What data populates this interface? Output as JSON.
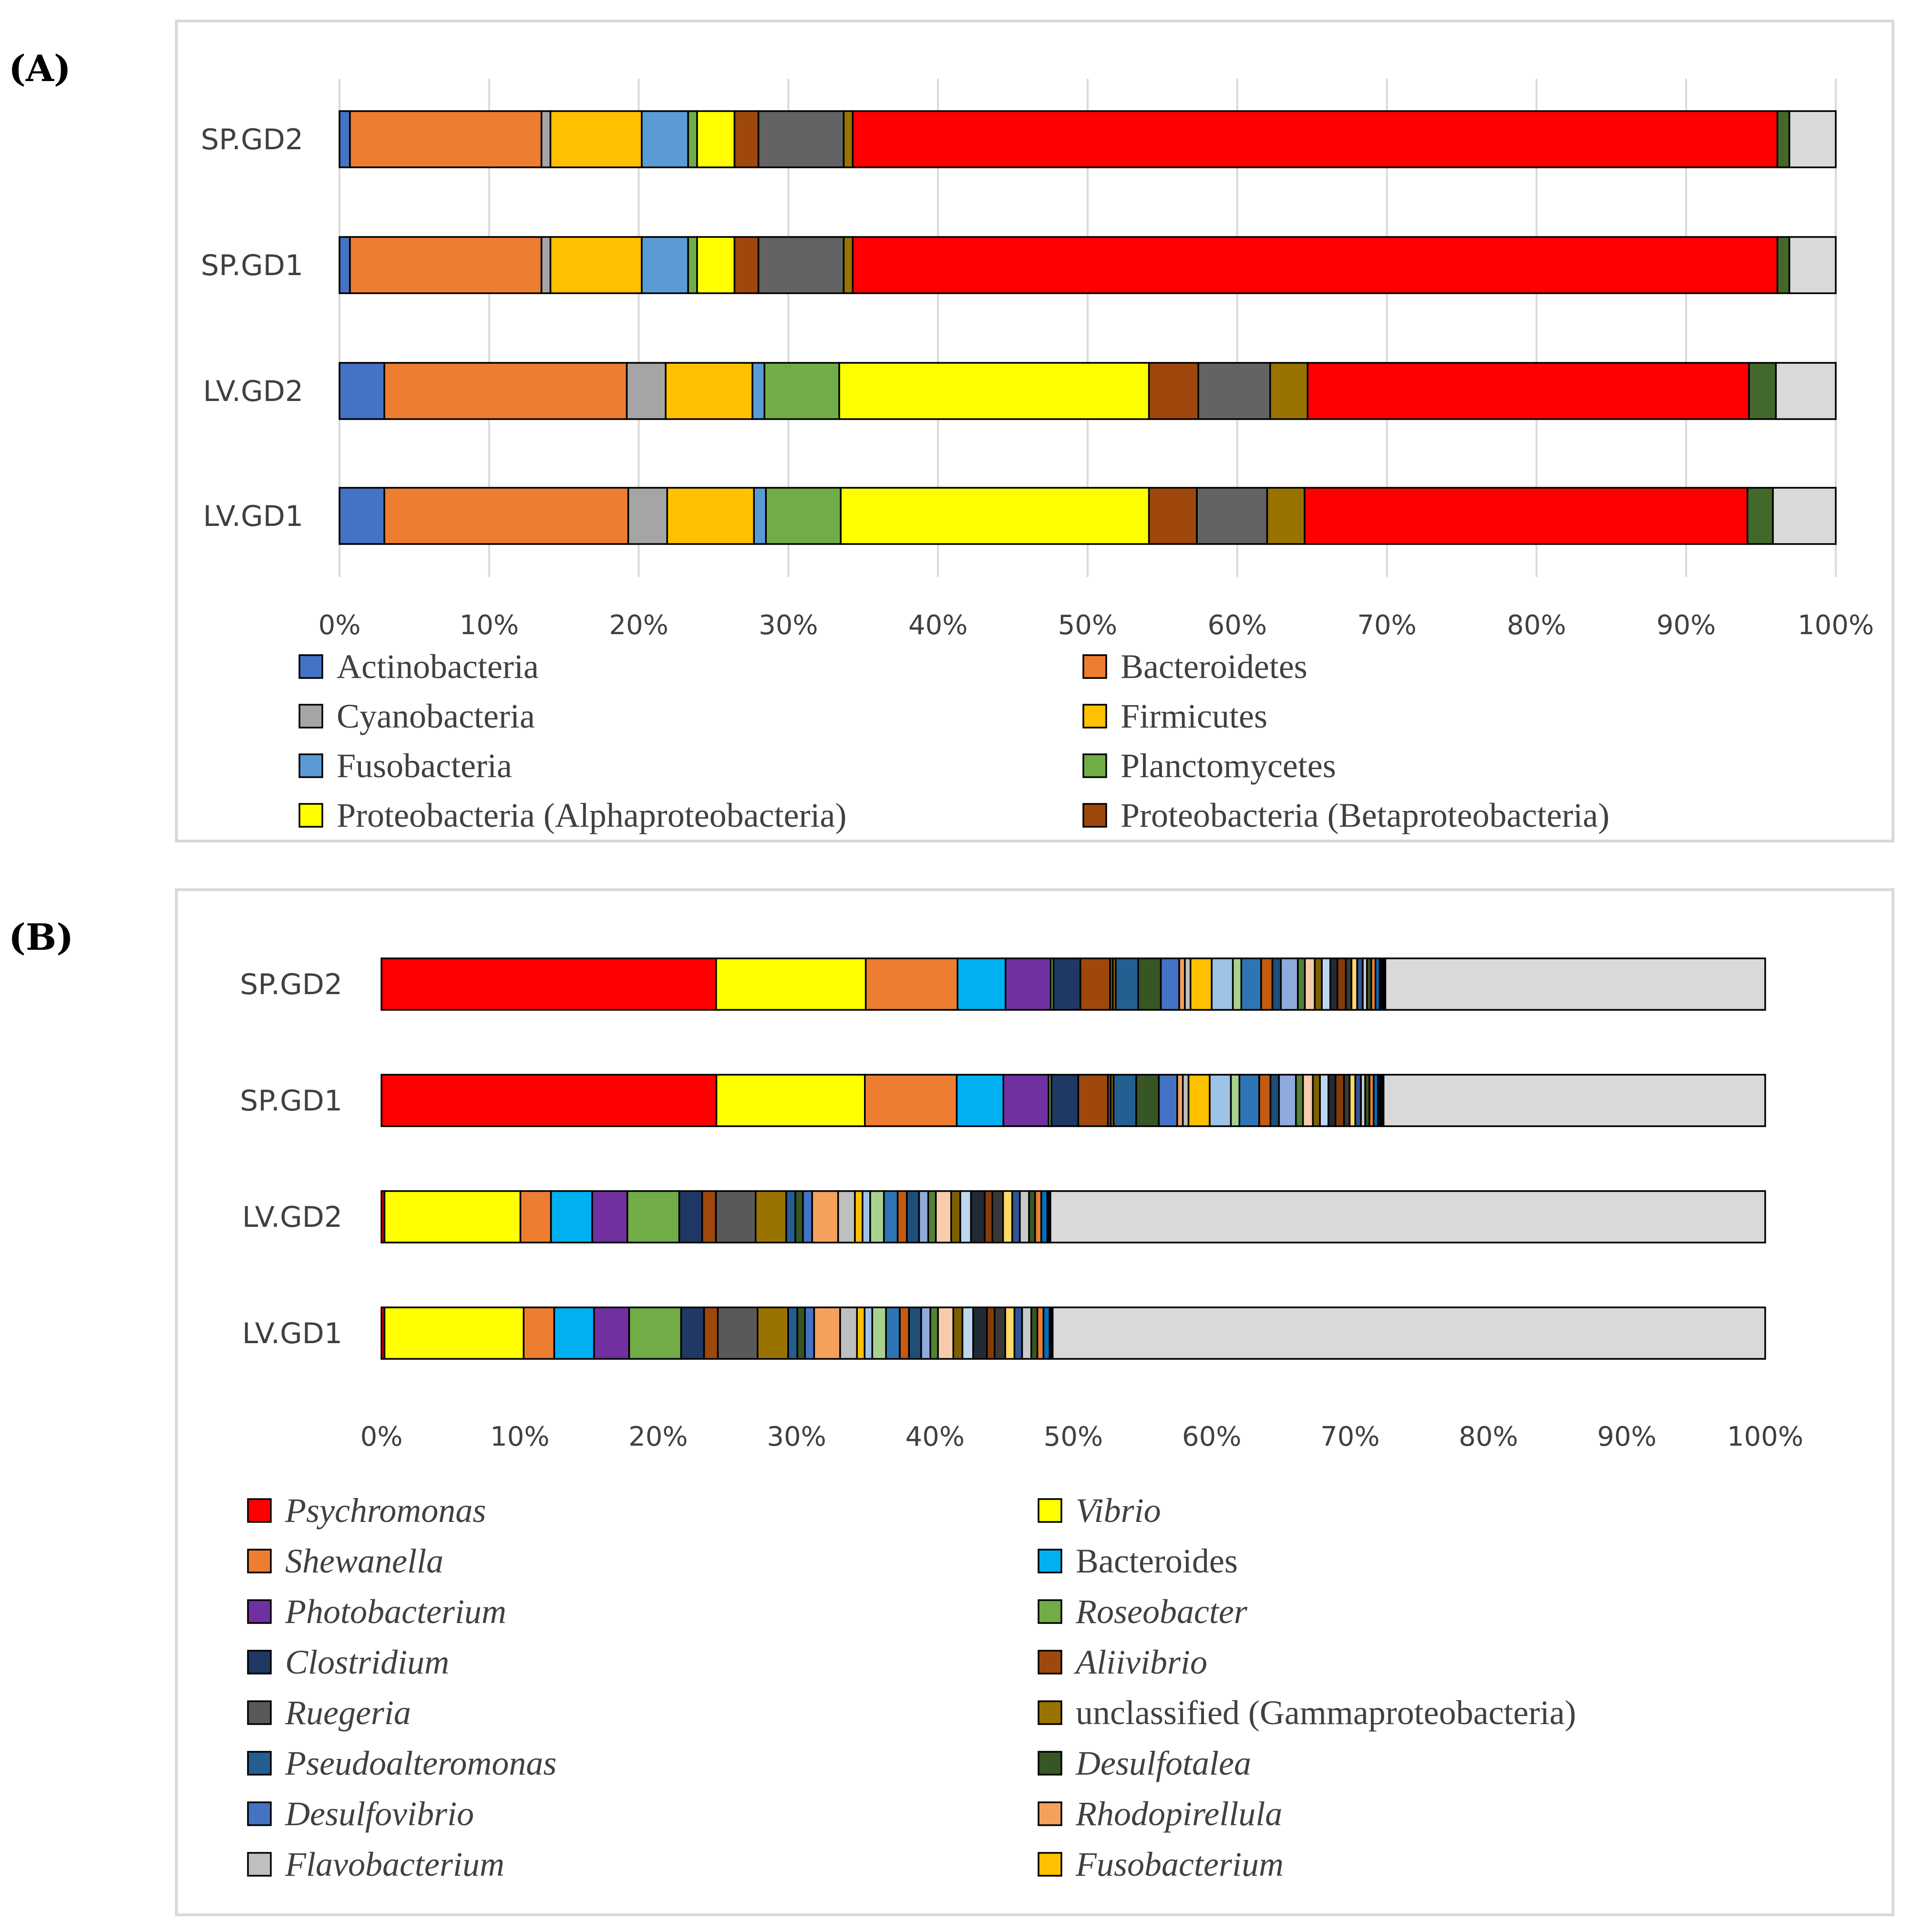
{
  "chart_data": [
    {
      "panel": "(A)",
      "type": "bar",
      "orientation": "horizontal",
      "stacked": "percent",
      "categories": [
        "SP.GD2",
        "SP.GD1",
        "LV.GD2",
        "LV.GD1"
      ],
      "xlim": [
        0,
        100
      ],
      "xticks": [
        "0%",
        "10%",
        "20%",
        "30%",
        "40%",
        "50%",
        "60%",
        "70%",
        "80%",
        "90%",
        "100%"
      ],
      "grid": "vertical",
      "series": [
        {
          "name": "Actinobacteria",
          "color": "#4472C4",
          "legend": true,
          "values": [
            0.7,
            0.7,
            3.0,
            3.0
          ]
        },
        {
          "name": "Bacteroidetes",
          "color": "#ED7D31",
          "legend": true,
          "values": [
            12.8,
            12.8,
            16.2,
            16.3
          ]
        },
        {
          "name": "Cyanobacteria",
          "color": "#A5A5A5",
          "legend": true,
          "values": [
            0.6,
            0.6,
            2.6,
            2.6
          ]
        },
        {
          "name": "Firmicutes",
          "color": "#FFC000",
          "legend": true,
          "values": [
            6.1,
            6.1,
            5.8,
            5.8
          ]
        },
        {
          "name": "Fusobacteria",
          "color": "#5B9BD5",
          "legend": true,
          "values": [
            3.1,
            3.1,
            0.8,
            0.8
          ]
        },
        {
          "name": "Planctomycetes",
          "color": "#70AD47",
          "legend": true,
          "values": [
            0.6,
            0.6,
            5.0,
            5.0
          ]
        },
        {
          "name": "Proteobacteria (Alphaproteobacteria)",
          "color": "#FFFF00",
          "legend": true,
          "values": [
            2.5,
            2.5,
            20.7,
            20.6
          ]
        },
        {
          "name": "Proteobacteria (Betaproteobacteria)",
          "color": "#9E480E",
          "legend": true,
          "values": [
            1.6,
            1.6,
            3.3,
            3.2
          ]
        },
        {
          "name": "",
          "color": "#636363",
          "legend": false,
          "values": [
            5.7,
            5.7,
            4.8,
            4.7
          ]
        },
        {
          "name": "",
          "color": "#997300",
          "legend": false,
          "values": [
            0.6,
            0.6,
            2.5,
            2.5
          ]
        },
        {
          "name": "",
          "color": "#FF0000",
          "legend": false,
          "values": [
            61.8,
            61.8,
            29.5,
            29.6
          ]
        },
        {
          "name": "",
          "color": "#43682B",
          "legend": false,
          "values": [
            0.8,
            0.8,
            1.8,
            1.7
          ]
        },
        {
          "name": "",
          "color": "#D9D9D9",
          "legend": false,
          "values": [
            3.1,
            3.1,
            4.0,
            4.2
          ]
        }
      ]
    },
    {
      "panel": "(B)",
      "type": "bar",
      "orientation": "horizontal",
      "stacked": "percent",
      "categories": [
        "SP.GD2",
        "SP.GD1",
        "LV.GD2",
        "LV.GD1"
      ],
      "xlim": [
        0,
        100
      ],
      "xticks": [
        "0%",
        "10%",
        "20%",
        "30%",
        "40%",
        "50%",
        "60%",
        "70%",
        "80%",
        "90%",
        "100%"
      ],
      "grid": "none",
      "series": [
        {
          "name": "Psychromonas",
          "italic": true,
          "color": "#FF0000",
          "legend": true,
          "values": [
            23.7,
            23.7,
            0.2,
            0.2
          ]
        },
        {
          "name": "Vibrio",
          "italic": true,
          "color": "#FFFF00",
          "legend": true,
          "values": [
            10.6,
            10.5,
            8.9,
            9.1
          ]
        },
        {
          "name": "Shewanella",
          "italic": true,
          "color": "#ED7D31",
          "legend": true,
          "values": [
            6.5,
            6.5,
            2.0,
            2.0
          ]
        },
        {
          "name": "Bacteroides",
          "italic": false,
          "color": "#00B0F0",
          "legend": true,
          "values": [
            3.4,
            3.3,
            2.7,
            2.6
          ]
        },
        {
          "name": "Photobacterium",
          "italic": true,
          "color": "#7030A0",
          "legend": true,
          "values": [
            3.2,
            3.2,
            2.3,
            2.3
          ]
        },
        {
          "name": "Roseobacter",
          "italic": true,
          "color": "#70AD47",
          "legend": true,
          "values": [
            0.2,
            0.2,
            3.4,
            3.4
          ]
        },
        {
          "name": "Clostridium",
          "italic": true,
          "color": "#203864",
          "legend": true,
          "values": [
            1.9,
            1.9,
            1.5,
            1.5
          ]
        },
        {
          "name": "Aliivibrio",
          "italic": true,
          "color": "#9E480E",
          "legend": true,
          "values": [
            2.1,
            2.1,
            0.9,
            0.9
          ]
        },
        {
          "name": "Ruegeria",
          "italic": true,
          "color": "#595959",
          "legend": true,
          "values": [
            0.2,
            0.2,
            2.6,
            2.6
          ]
        },
        {
          "name": "unclassified (Gammaproteobacteria)",
          "italic": false,
          "color": "#997300",
          "legend": true,
          "values": [
            0.2,
            0.2,
            2.0,
            2.0
          ]
        },
        {
          "name": "Pseudoalteromonas",
          "italic": true,
          "color": "#255E91",
          "legend": true,
          "values": [
            1.6,
            1.6,
            0.6,
            0.6
          ]
        },
        {
          "name": "Desulfotalea",
          "italic": true,
          "color": "#375623",
          "legend": true,
          "values": [
            1.6,
            1.6,
            0.5,
            0.5
          ]
        },
        {
          "name": "Desulfovibrio",
          "italic": true,
          "color": "#4472C4",
          "legend": true,
          "values": [
            1.3,
            1.3,
            0.6,
            0.6
          ]
        },
        {
          "name": "Rhodopirellula",
          "italic": true,
          "color": "#F4A15C",
          "legend": true,
          "values": [
            0.4,
            0.4,
            1.7,
            1.7
          ]
        },
        {
          "name": "Flavobacterium",
          "italic": true,
          "color": "#BFBFBF",
          "legend": true,
          "values": [
            0.4,
            0.4,
            1.1,
            1.1
          ]
        },
        {
          "name": "Fusobacterium",
          "italic": true,
          "color": "#FFC000",
          "legend": true,
          "values": [
            1.5,
            1.5,
            0.5,
            0.5
          ]
        },
        {
          "name": "",
          "color": "#9DC3E6",
          "legend": false,
          "values": [
            1.5,
            1.5,
            0.5,
            0.5
          ]
        },
        {
          "name": "",
          "color": "#A9D18E",
          "legend": false,
          "values": [
            0.6,
            0.6,
            0.9,
            0.9
          ]
        },
        {
          "name": "",
          "color": "#2E75B6",
          "legend": false,
          "values": [
            1.4,
            1.4,
            0.9,
            0.9
          ]
        },
        {
          "name": "",
          "color": "#C55A11",
          "legend": false,
          "values": [
            0.8,
            0.8,
            0.6,
            0.6
          ]
        },
        {
          "name": "",
          "color": "#1F4E79",
          "legend": false,
          "values": [
            0.6,
            0.6,
            0.8,
            0.8
          ]
        },
        {
          "name": "",
          "color": "#8FAADC",
          "legend": false,
          "values": [
            1.2,
            1.2,
            0.6,
            0.6
          ]
        },
        {
          "name": "",
          "color": "#548235",
          "legend": false,
          "values": [
            0.5,
            0.5,
            0.5,
            0.5
          ]
        },
        {
          "name": "",
          "color": "#F8CBAD",
          "legend": false,
          "values": [
            0.7,
            0.7,
            1.0,
            1.0
          ]
        },
        {
          "name": "",
          "color": "#7F6000",
          "legend": false,
          "values": [
            0.5,
            0.5,
            0.6,
            0.6
          ]
        },
        {
          "name": "",
          "color": "#BDD7EE",
          "legend": false,
          "values": [
            0.6,
            0.6,
            0.7,
            0.7
          ]
        },
        {
          "name": "",
          "color": "#222A35",
          "legend": false,
          "values": [
            0.5,
            0.5,
            0.9,
            0.9
          ]
        },
        {
          "name": "",
          "color": "#843C0C",
          "legend": false,
          "values": [
            0.6,
            0.6,
            0.5,
            0.5
          ]
        },
        {
          "name": "",
          "color": "#3B3838",
          "legend": false,
          "values": [
            0.4,
            0.4,
            0.7,
            0.7
          ]
        },
        {
          "name": "",
          "color": "#FFD966",
          "legend": false,
          "values": [
            0.4,
            0.4,
            0.6,
            0.6
          ]
        },
        {
          "name": "",
          "color": "#2F5597",
          "legend": false,
          "values": [
            0.4,
            0.4,
            0.5,
            0.5
          ]
        },
        {
          "name": "",
          "color": "#C9C9C9",
          "legend": false,
          "values": [
            0.3,
            0.3,
            0.6,
            0.6
          ]
        },
        {
          "name": "",
          "color": "#385723",
          "legend": false,
          "values": [
            0.3,
            0.3,
            0.4,
            0.4
          ]
        },
        {
          "name": "",
          "color": "#ED7D31",
          "legend": false,
          "values": [
            0.3,
            0.3,
            0.4,
            0.4
          ]
        },
        {
          "name": "",
          "color": "#0070C0",
          "legend": false,
          "values": [
            0.3,
            0.3,
            0.4,
            0.4
          ]
        },
        {
          "name": "",
          "color": "#000000",
          "legend": false,
          "values": [
            0.4,
            0.4,
            0.2,
            0.2
          ]
        },
        {
          "name": "",
          "color": "#D9D9D9",
          "legend": false,
          "values": [
            26.9,
            27.0,
            46.8,
            46.6
          ]
        }
      ]
    }
  ]
}
